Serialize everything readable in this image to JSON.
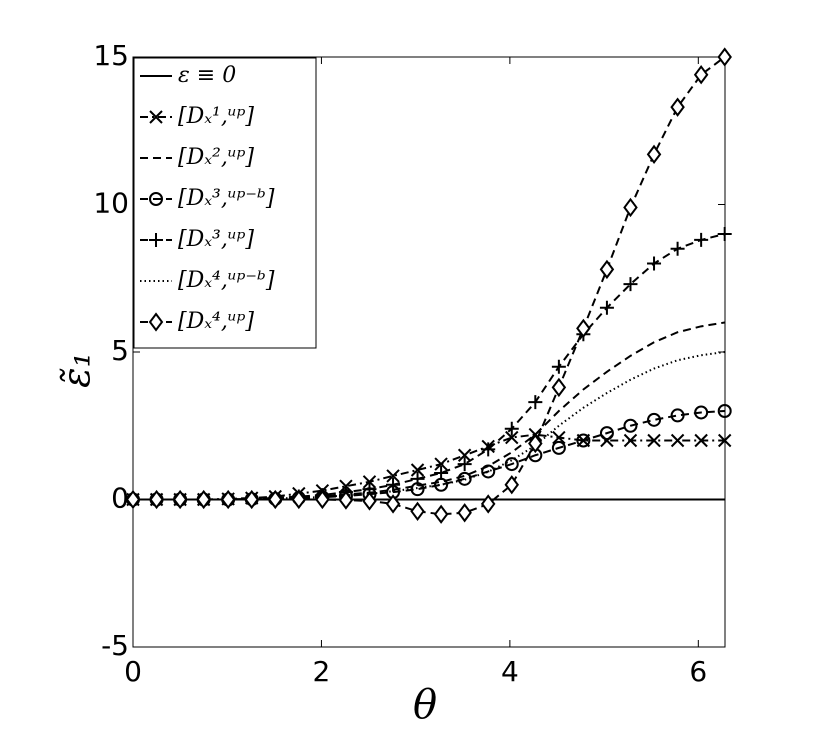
{
  "chart_data": {
    "type": "line",
    "xlabel": "θ",
    "ylabel": "ε̃₁",
    "x": [
      0,
      0.25,
      0.5,
      0.75,
      1.01,
      1.26,
      1.51,
      1.76,
      2.01,
      2.26,
      2.51,
      2.76,
      3.02,
      3.27,
      3.52,
      3.77,
      4.02,
      4.27,
      4.52,
      4.78,
      5.03,
      5.28,
      5.53,
      5.78,
      6.03,
      6.28
    ],
    "xlim": [
      0,
      6.2832
    ],
    "xticks": [
      0,
      2,
      4,
      6
    ],
    "ylim": [
      -5,
      15
    ],
    "yticks": [
      -5,
      0,
      5,
      10,
      15
    ],
    "legend": "upper left",
    "series": [
      {
        "name": "ε ≡ 0",
        "color": "#000000",
        "linestyle": "solid",
        "marker": "none",
        "values": [
          0,
          0,
          0,
          0,
          0,
          0,
          0,
          0,
          0,
          0,
          0,
          0,
          0,
          0,
          0,
          0,
          0,
          0,
          0,
          0,
          0,
          0,
          0,
          0,
          0,
          0
        ]
      },
      {
        "name": "[Dₓ¹,ᵘᵖ]",
        "color": "#000000",
        "linestyle": "dashdot",
        "marker": "x",
        "values": [
          0,
          0,
          0,
          0,
          0.02,
          0.05,
          0.1,
          0.2,
          0.3,
          0.45,
          0.6,
          0.8,
          1.0,
          1.2,
          1.5,
          1.8,
          2.1,
          2.2,
          2.1,
          2.0,
          2.0,
          2.0,
          2.0,
          2.0,
          2.0,
          2.0
        ]
      },
      {
        "name": "[Dₓ²,ᵘᵖ]",
        "color": "#000000",
        "linestyle": "dashed",
        "marker": "none",
        "values": [
          0,
          0,
          0,
          0,
          0,
          0.01,
          0.03,
          0.07,
          0.1,
          0.17,
          0.23,
          0.33,
          0.47,
          0.6,
          0.8,
          1.13,
          1.6,
          2.2,
          3.0,
          3.73,
          4.33,
          4.87,
          5.33,
          5.67,
          5.87,
          6.0
        ]
      },
      {
        "name": "[Dₓ³,ᵘᵖ⁻ᵇ]",
        "color": "#000000",
        "linestyle": "dashed",
        "marker": "o",
        "values": [
          0,
          0,
          0,
          0,
          0,
          0.01,
          0.02,
          0.05,
          0.08,
          0.12,
          0.18,
          0.25,
          0.35,
          0.5,
          0.7,
          0.95,
          1.2,
          1.5,
          1.75,
          2.0,
          2.25,
          2.5,
          2.7,
          2.85,
          2.95,
          3.0
        ]
      },
      {
        "name": "[Dₓ³,ᵘᵖ]",
        "color": "#000000",
        "linestyle": "dashed",
        "marker": "+",
        "values": [
          0,
          0,
          0,
          0,
          0,
          0.02,
          0.05,
          0.1,
          0.15,
          0.25,
          0.35,
          0.5,
          0.7,
          0.9,
          1.2,
          1.7,
          2.4,
          3.3,
          4.5,
          5.6,
          6.5,
          7.3,
          8.0,
          8.5,
          8.8,
          9.0
        ]
      },
      {
        "name": "[Dₓ⁴,ᵘᵖ⁻ᵇ]",
        "color": "#000000",
        "linestyle": "dotted",
        "marker": "none",
        "values": [
          0,
          0,
          0,
          0,
          0,
          0.01,
          0.03,
          0.06,
          0.08,
          0.14,
          0.19,
          0.28,
          0.39,
          0.5,
          0.67,
          0.94,
          1.33,
          1.83,
          2.5,
          3.11,
          3.61,
          4.06,
          4.44,
          4.72,
          4.89,
          5.0
        ]
      },
      {
        "name": "[Dₓ⁴,ᵘᵖ]",
        "color": "#000000",
        "linestyle": "dashed",
        "marker": "d",
        "values": [
          0,
          0,
          0,
          0,
          0,
          0,
          0,
          0,
          0,
          -0.02,
          -0.05,
          -0.15,
          -0.4,
          -0.5,
          -0.45,
          -0.15,
          0.5,
          1.9,
          3.8,
          5.8,
          7.8,
          9.9,
          11.7,
          13.3,
          14.4,
          15.0
        ]
      }
    ]
  }
}
